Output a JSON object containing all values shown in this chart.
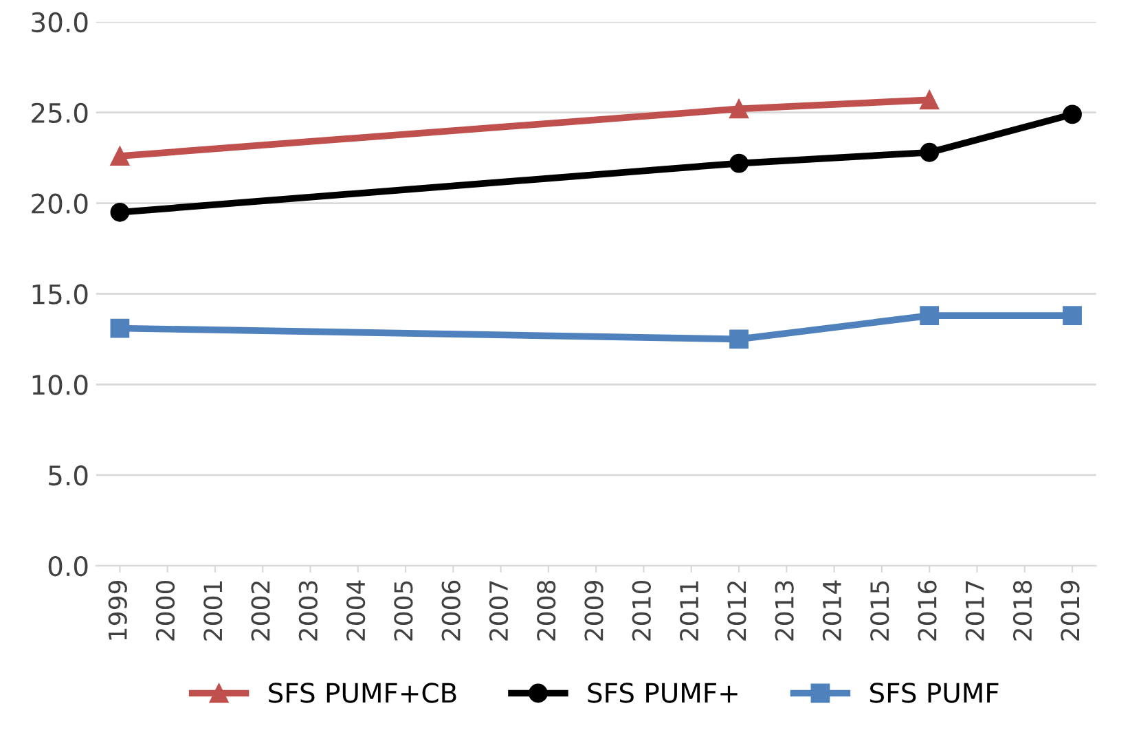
{
  "chart_data": {
    "type": "line",
    "xlim": [
      1998.5,
      2019.5
    ],
    "xticks": [
      1999,
      2000,
      2001,
      2002,
      2003,
      2004,
      2005,
      2006,
      2007,
      2008,
      2009,
      2010,
      2011,
      2012,
      2013,
      2014,
      2015,
      2016,
      2017,
      2018,
      2019
    ],
    "ylim": [
      0,
      30
    ],
    "yticks": [
      {
        "value": 0,
        "label": "0.0"
      },
      {
        "value": 5,
        "label": "5.0"
      },
      {
        "value": 10,
        "label": "10.0"
      },
      {
        "value": 15,
        "label": "15.0"
      },
      {
        "value": 20,
        "label": "20.0"
      },
      {
        "value": 25,
        "label": "25.0"
      },
      {
        "value": 30,
        "label": "30.0"
      }
    ],
    "grid": "y",
    "legend": "bottom",
    "line_style": "solid",
    "series": [
      {
        "name": "SFS PUMF+CB",
        "color": "#c0504d",
        "marker": "triangle",
        "x": [
          1999,
          2012,
          2016
        ],
        "values": [
          22.6,
          25.2,
          25.7
        ]
      },
      {
        "name": "SFS PUMF+",
        "color": "#000000",
        "marker": "circle",
        "x": [
          1999,
          2012,
          2016,
          2019
        ],
        "values": [
          19.5,
          22.2,
          22.8,
          24.9
        ]
      },
      {
        "name": "SFS PUMF",
        "color": "#4f81bd",
        "marker": "square",
        "x": [
          1999,
          2012,
          2016,
          2019
        ],
        "values": [
          13.1,
          12.5,
          13.8,
          13.8
        ]
      }
    ]
  }
}
